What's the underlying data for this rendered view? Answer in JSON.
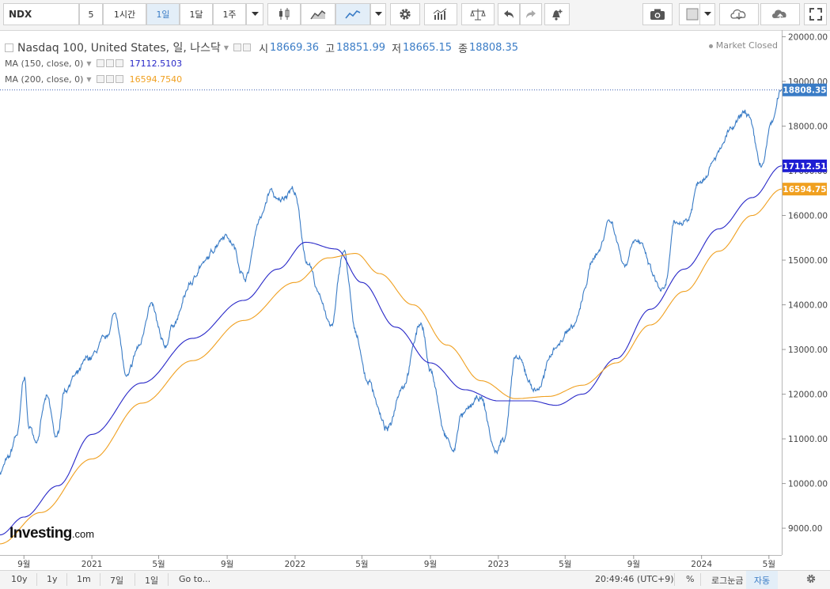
{
  "toolbar": {
    "symbol": "NDX",
    "intervals": [
      "5",
      "1시간",
      "1일",
      "1달",
      "1주"
    ],
    "active_interval": "1일",
    "icons": [
      "caret-down-icon",
      "candlestick-icon",
      "area-chart-icon",
      "line-chart-icon",
      "caret-down-icon",
      "gear-icon",
      "indicators-icon",
      "compare-scale-icon",
      "undo-icon",
      "redo-icon",
      "alert-bell-icon",
      "camera-icon",
      "color-box-icon",
      "caret-down-icon",
      "cloud-download-icon",
      "cloud-upload-icon",
      "fullscreen-icon"
    ]
  },
  "legend": {
    "title": "Nasdaq 100, United States, 일, 나스닥",
    "ohlc": [
      {
        "label": "시",
        "value": "18669.36"
      },
      {
        "label": "고",
        "value": "18851.99"
      },
      {
        "label": "저",
        "value": "18665.15"
      },
      {
        "label": "종",
        "value": "18808.35"
      }
    ],
    "ma150": {
      "name": "MA (150, close, 0)",
      "value": "17112.5103",
      "color": "#2828c8"
    },
    "ma200": {
      "name": "MA (200, close, 0)",
      "value": "16594.7540",
      "color": "#f0a020"
    },
    "status": "Market Closed"
  },
  "logo": {
    "text": "Investing",
    "suffix": ".com"
  },
  "bottom": {
    "ranges": [
      "10y",
      "1y",
      "1m",
      "7일",
      "1일"
    ],
    "goto": "Go to...",
    "time": "20:49:46 (UTC+9)",
    "percent": "%",
    "log": "로그눈금",
    "auto": "자동"
  },
  "chart_data": {
    "type": "line",
    "price_color": "#3a7cc6",
    "ylim": [
      8400,
      20150
    ],
    "y_ticks": [
      9000,
      10000,
      11000,
      12000,
      13000,
      14000,
      15000,
      16000,
      17000,
      18000,
      19000,
      20000
    ],
    "y_tick_labels": [
      "9000.00",
      "10000.00",
      "11000.00",
      "12000.00",
      "13000.00",
      "14000.00",
      "15000.00",
      "16000.00",
      "17000.00",
      "18000.00",
      "19000.00",
      "20000.00"
    ],
    "x_labels": [
      "9월",
      "2021",
      "5월",
      "9월",
      "2022",
      "5월",
      "9월",
      "2023",
      "5월",
      "9월",
      "2024",
      "5월"
    ],
    "x_label_dates": [
      "2020-09-01",
      "2021-01-01",
      "2021-05-01",
      "2021-09-01",
      "2022-01-01",
      "2022-05-01",
      "2022-09-01",
      "2023-01-01",
      "2023-05-01",
      "2023-09-01",
      "2024-01-01",
      "2024-05-01"
    ],
    "x_range": [
      "2020-07-20",
      "2024-05-24"
    ],
    "series": [
      {
        "name": "Nasdaq 100",
        "dates": [
          "2020-07-20",
          "2020-08-03",
          "2020-08-20",
          "2020-09-02",
          "2020-09-09",
          "2020-09-23",
          "2020-10-12",
          "2020-10-30",
          "2020-11-13",
          "2020-12-01",
          "2020-12-28",
          "2021-01-25",
          "2021-02-12",
          "2021-03-05",
          "2021-03-26",
          "2021-04-16",
          "2021-05-12",
          "2021-05-28",
          "2021-06-30",
          "2021-07-16",
          "2021-08-31",
          "2021-09-07",
          "2021-10-04",
          "2021-10-29",
          "2021-11-19",
          "2021-12-01",
          "2021-12-27",
          "2022-01-27",
          "2022-02-11",
          "2022-03-07",
          "2022-03-29",
          "2022-04-21",
          "2022-05-11",
          "2022-06-16",
          "2022-07-12",
          "2022-08-16",
          "2022-09-01",
          "2022-09-30",
          "2022-10-13",
          "2022-10-25",
          "2022-11-30",
          "2022-12-28",
          "2023-01-10",
          "2023-02-02",
          "2023-03-10",
          "2023-04-17",
          "2023-05-12",
          "2023-06-30",
          "2023-07-19",
          "2023-08-18",
          "2023-09-01",
          "2023-10-26",
          "2023-11-14",
          "2023-12-06",
          "2023-12-29",
          "2024-01-31",
          "2024-02-22",
          "2024-03-21",
          "2024-04-19",
          "2024-05-06",
          "2024-05-24"
        ],
        "values": [
          10270,
          10520,
          11100,
          12400,
          11300,
          11000,
          11900,
          11000,
          12100,
          12400,
          12800,
          13200,
          13800,
          12350,
          13050,
          14000,
          13050,
          13600,
          14500,
          14900,
          15600,
          15400,
          14600,
          15900,
          16550,
          16300,
          16600,
          14800,
          14300,
          13500,
          15200,
          13300,
          12300,
          11200,
          12200,
          13600,
          12500,
          11000,
          10700,
          11500,
          11900,
          10700,
          11000,
          12800,
          12100,
          13100,
          13500,
          15200,
          15900,
          14900,
          15500,
          14300,
          15800,
          15900,
          16800,
          17400,
          17900,
          18300,
          17100,
          18100,
          18810
        ]
      },
      {
        "name": "MA (150, close, 0)",
        "dates": [
          "2020-07-20",
          "2020-09-01",
          "2020-11-01",
          "2021-01-01",
          "2021-04-01",
          "2021-07-01",
          "2021-10-01",
          "2021-12-01",
          "2022-01-20",
          "2022-03-15",
          "2022-05-01",
          "2022-07-01",
          "2022-09-01",
          "2022-11-01",
          "2023-01-01",
          "2023-03-01",
          "2023-04-15",
          "2023-06-01",
          "2023-08-01",
          "2023-10-01",
          "2023-12-01",
          "2024-02-01",
          "2024-04-01",
          "2024-05-24"
        ],
        "values": [
          8850,
          9250,
          9950,
          11100,
          12250,
          13250,
          14100,
          14800,
          15400,
          15250,
          14500,
          13500,
          12700,
          12100,
          11850,
          11850,
          11750,
          12000,
          12800,
          13900,
          14800,
          15700,
          16400,
          17110
        ]
      },
      {
        "name": "MA (200, close, 0)",
        "dates": [
          "2020-07-20",
          "2020-10-01",
          "2021-01-01",
          "2021-04-01",
          "2021-07-01",
          "2021-10-01",
          "2022-01-01",
          "2022-03-01",
          "2022-04-20",
          "2022-06-01",
          "2022-08-01",
          "2022-10-01",
          "2022-12-01",
          "2023-02-01",
          "2023-04-01",
          "2023-06-01",
          "2023-08-01",
          "2023-10-01",
          "2023-12-01",
          "2024-02-01",
          "2024-04-01",
          "2024-05-24"
        ],
        "values": [
          8650,
          9350,
          10550,
          11800,
          12750,
          13650,
          14500,
          15050,
          15150,
          14700,
          14000,
          13100,
          12300,
          11900,
          11950,
          12200,
          12700,
          13550,
          14300,
          15200,
          16000,
          16590
        ]
      }
    ],
    "last_price_label": "18808.35",
    "ma150_label": "17112.51",
    "ma200_label": "16594.75"
  }
}
